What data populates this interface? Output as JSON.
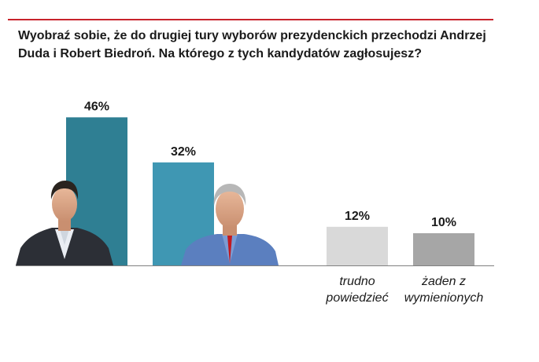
{
  "title": "Wyobraź sobie, że do drugiej tury wyborów prezydenckich przechodzi Andrzej Duda i Robert Biedroń. Na którego z tych kandydatów zagłosujesz?",
  "colors": {
    "rule": "#c8232c",
    "duda": "#2f7f93",
    "biedron": "#3f97b3",
    "trudno": "#d9d9d9",
    "zaden": "#a6a6a6",
    "axis": "#808080"
  },
  "chart_data": {
    "type": "bar",
    "categories": [
      "",
      "",
      "trudno\npowiedzieć",
      "żaden z\nwymienionych"
    ],
    "values": [
      46,
      32,
      12,
      10
    ],
    "value_labels": [
      "46%",
      "32%",
      "12%",
      "10%"
    ],
    "photos": [
      "Andrzej Duda",
      "Robert Biedroń"
    ],
    "ylim": [
      0,
      50
    ],
    "grid": false,
    "legend": "none"
  }
}
